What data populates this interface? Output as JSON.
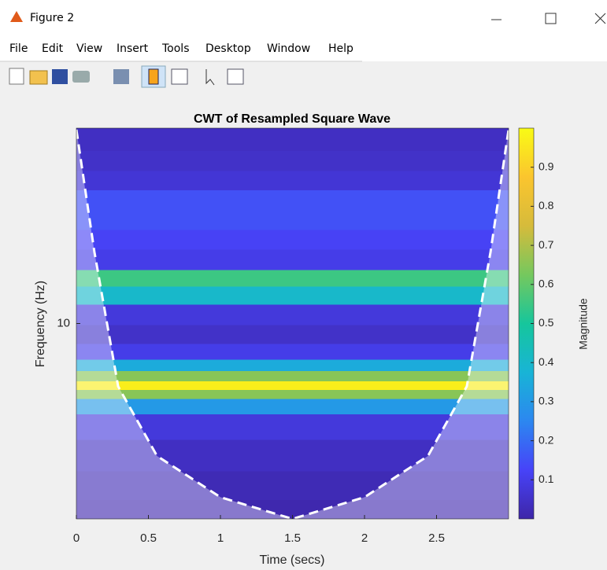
{
  "window": {
    "title": "Figure 2",
    "menu": [
      "File",
      "Edit",
      "View",
      "Insert",
      "Tools",
      "Desktop",
      "Window",
      "Help"
    ]
  },
  "chart_data": {
    "type": "heatmap",
    "title": "CWT of Resampled Square Wave",
    "xlabel": "Time (secs)",
    "ylabel": "Frequency (Hz)",
    "colorbar_label": "Magnitude",
    "xlim": [
      0,
      3
    ],
    "xticks": [
      0,
      0.5,
      1,
      1.5,
      2,
      2.5
    ],
    "ylim": [
      5,
      20
    ],
    "yticks": [
      10
    ],
    "log_y": true,
    "y": [
      19.1,
      17.8,
      16.6,
      15.5,
      14.4,
      13.5,
      12.5,
      11.7,
      11.1,
      10.3,
      9.6,
      9.0,
      8.6,
      8.3,
      8.0,
      7.8,
      7.5,
      7.0,
      6.25,
      5.6,
      5.1
    ],
    "values": [
      0.04,
      0.05,
      0.07,
      0.15,
      0.15,
      0.12,
      0.1,
      0.55,
      0.4,
      0.08,
      0.05,
      0.1,
      0.35,
      0.65,
      0.97,
      0.65,
      0.3,
      0.08,
      0.04,
      0.02,
      0.01
    ],
    "clim": [
      0,
      1
    ],
    "cticks": [
      0.1,
      0.2,
      0.3,
      0.4,
      0.5,
      0.6,
      0.7,
      0.8,
      0.9
    ],
    "colormap": [
      "#3e26a8",
      "#4743f8",
      "#2c87f0",
      "#18b4d6",
      "#16c69c",
      "#75c85e",
      "#d6bb3b",
      "#fbc52e",
      "#f9fb15"
    ],
    "coi": {
      "x": [
        0,
        0.125,
        0.29,
        0.56,
        1.0,
        1.5,
        2.0,
        2.44,
        2.71,
        2.875,
        3.0
      ],
      "y": [
        19.9,
        12.9,
        8.0,
        6.25,
        5.4,
        5.0,
        5.4,
        6.25,
        8.0,
        12.9,
        19.9
      ],
      "color": "#ffffff"
    }
  }
}
